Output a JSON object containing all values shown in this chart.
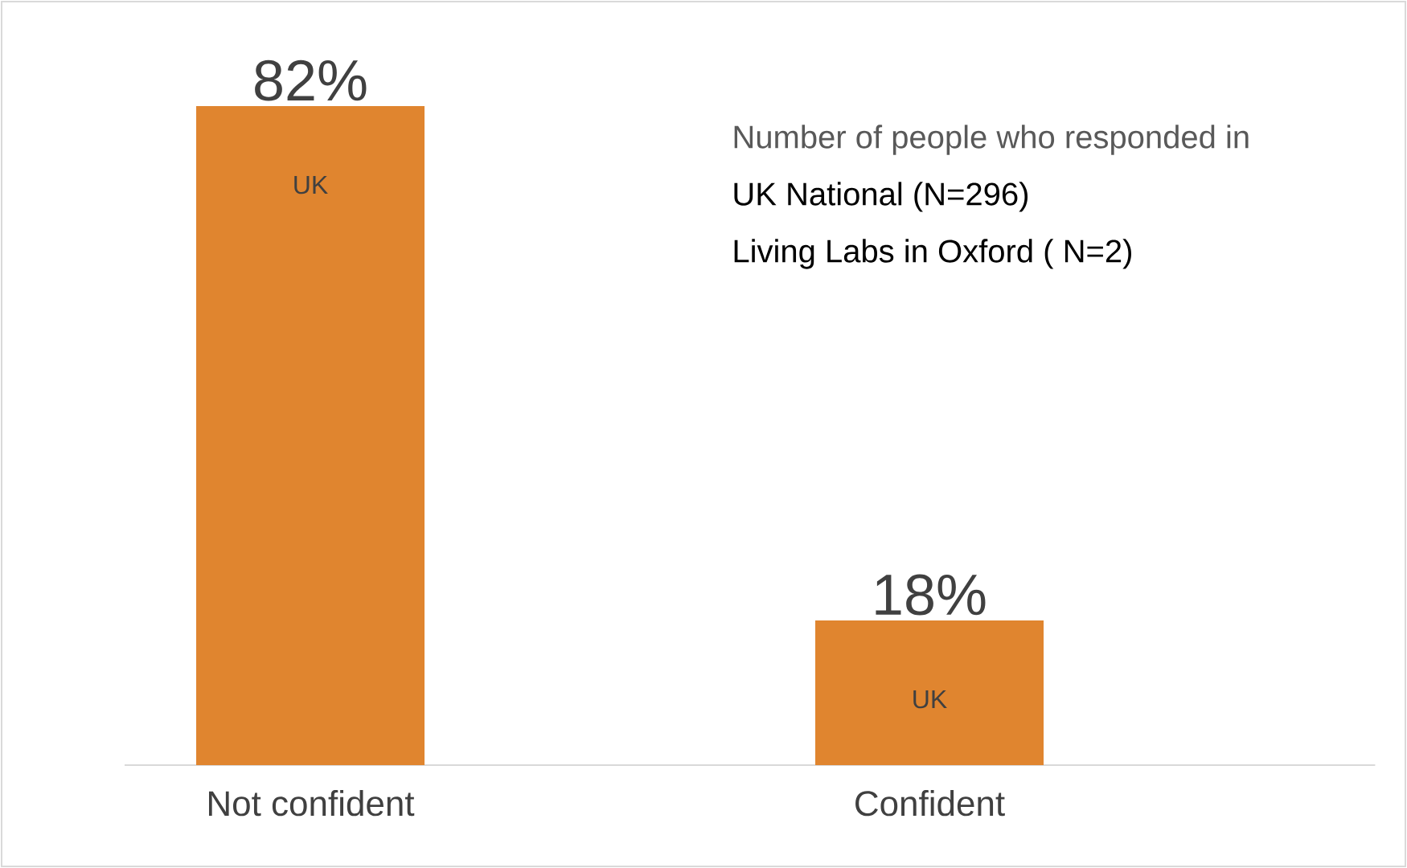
{
  "chart_data": {
    "type": "bar",
    "categories": [
      "Not confident",
      "Confident"
    ],
    "series": [
      {
        "name": "UK",
        "color": "#e0852f",
        "values": [
          82,
          18
        ],
        "value_labels": [
          "82%",
          "18%"
        ]
      }
    ],
    "annotations": [
      "Number of people who responded in",
      "UK National (N=296)",
      "Living Labs in Oxford ( N=2)"
    ]
  }
}
